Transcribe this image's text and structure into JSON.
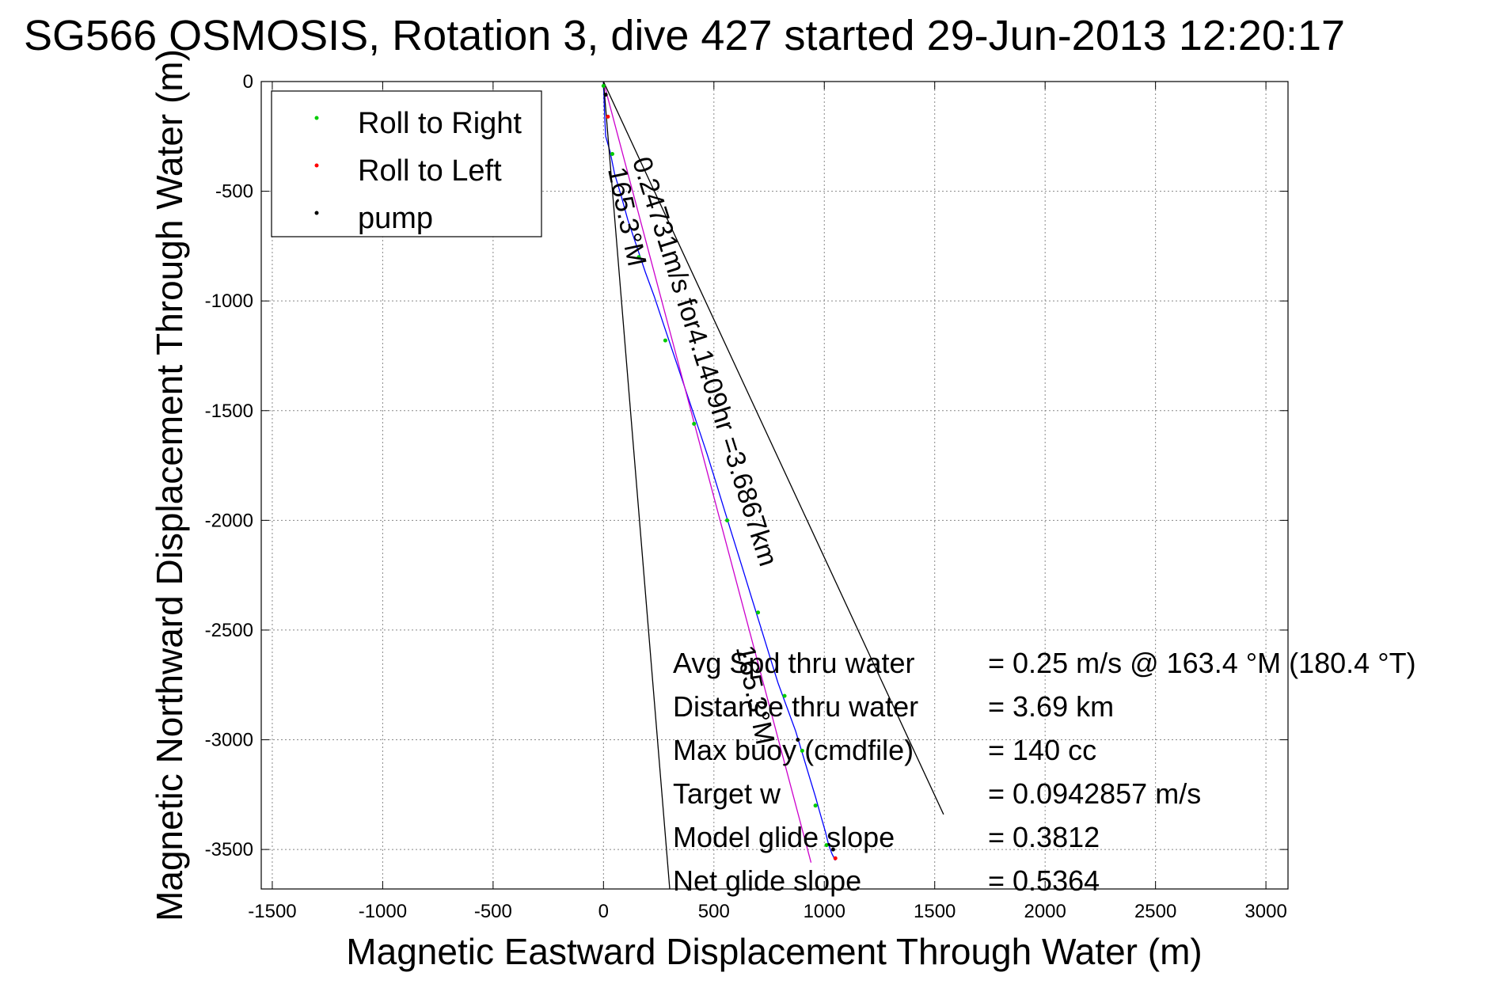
{
  "chart_data": {
    "type": "line",
    "title": "SG566 OSMOSIS, Rotation 3, dive 427 started 29-Jun-2013 12:20:17",
    "xlabel": "Magnetic Eastward Displacement Through Water (m)",
    "ylabel": "Magnetic Northward Displacement Through Water (m)",
    "xlim": [
      -1550,
      3100
    ],
    "ylim": [
      -3680,
      0
    ],
    "xticks": [
      -1500,
      -1000,
      -500,
      0,
      500,
      1000,
      1500,
      2000,
      2500,
      3000
    ],
    "yticks": [
      0,
      -500,
      -1000,
      -1500,
      -2000,
      -2500,
      -3000,
      -3500
    ],
    "grid": true,
    "legend_position": "top-left",
    "legend": [
      {
        "label": "Roll to Right",
        "color": "#00cc00"
      },
      {
        "label": "Roll to Left",
        "color": "#ff0000"
      },
      {
        "label": "pump",
        "color": "#000000"
      }
    ],
    "series": [
      {
        "key": "track",
        "color": "#0000ff",
        "x": [
          0,
          5,
          10,
          30,
          50,
          80,
          110,
          150,
          190,
          230,
          270,
          310,
          350,
          390,
          430,
          470,
          510,
          550,
          590,
          630,
          670,
          710,
          750,
          790,
          830,
          870,
          900,
          930,
          960,
          985,
          1005,
          1020,
          1035,
          1050
        ],
        "y": [
          0,
          -150,
          -250,
          -320,
          -420,
          -520,
          -630,
          -750,
          -870,
          -980,
          -1100,
          -1220,
          -1340,
          -1460,
          -1580,
          -1700,
          -1830,
          -1960,
          -2090,
          -2220,
          -2350,
          -2480,
          -2610,
          -2740,
          -2850,
          -2960,
          -3060,
          -3160,
          -3260,
          -3350,
          -3420,
          -3480,
          -3520,
          -3550
        ]
      },
      {
        "key": "model-heading",
        "color": "#cc00cc",
        "x": [
          0,
          940
        ],
        "y": [
          0,
          -3560
        ]
      },
      {
        "key": "cone-left",
        "color": "#000000",
        "x": [
          0,
          300
        ],
        "y": [
          0,
          -3680
        ]
      },
      {
        "key": "cone-right",
        "color": "#000000",
        "x": [
          0,
          1540
        ],
        "y": [
          0,
          -3340
        ]
      }
    ],
    "markers": {
      "roll_right": {
        "color": "#00cc00",
        "x": [
          0,
          40,
          160,
          280,
          410,
          560,
          700,
          820,
          900,
          960,
          1010
        ],
        "y": [
          -20,
          -330,
          -800,
          -1180,
          -1560,
          -2000,
          -2420,
          -2800,
          -3050,
          -3300,
          -3480
        ]
      },
      "roll_left": {
        "color": "#ff0000",
        "x": [
          20,
          1050
        ],
        "y": [
          -160,
          -3540
        ]
      },
      "pump": {
        "color": "#000000",
        "x": [
          10,
          880,
          1040
        ],
        "y": [
          -60,
          -3000,
          -3500
        ]
      }
    },
    "annotations": [
      {
        "text": "0.24731m/s for4.1409hr =3.6867km",
        "x": 130,
        "y": -360,
        "angle": 72.5
      },
      {
        "text": "165.3°M",
        "x": 20,
        "y": -400,
        "angle": 78
      },
      {
        "text": "165.3°M",
        "x": 600,
        "y": -2580,
        "angle": 78
      }
    ],
    "summary": [
      {
        "label": "Avg Spd thru water",
        "value": "=  0.25 m/s @ 163.4 °M (180.4 °T)"
      },
      {
        "label": "Distance thru water",
        "value": "=  3.69 km"
      },
      {
        "label": "Max buoy (cmdfile)",
        "value": "= 140 cc"
      },
      {
        "label": "Target w",
        "value": "= 0.0942857 m/s"
      },
      {
        "label": "Model glide slope",
        "value": "= 0.3812"
      },
      {
        "label": "Net glide slope",
        "value": "= 0.5364"
      }
    ]
  }
}
